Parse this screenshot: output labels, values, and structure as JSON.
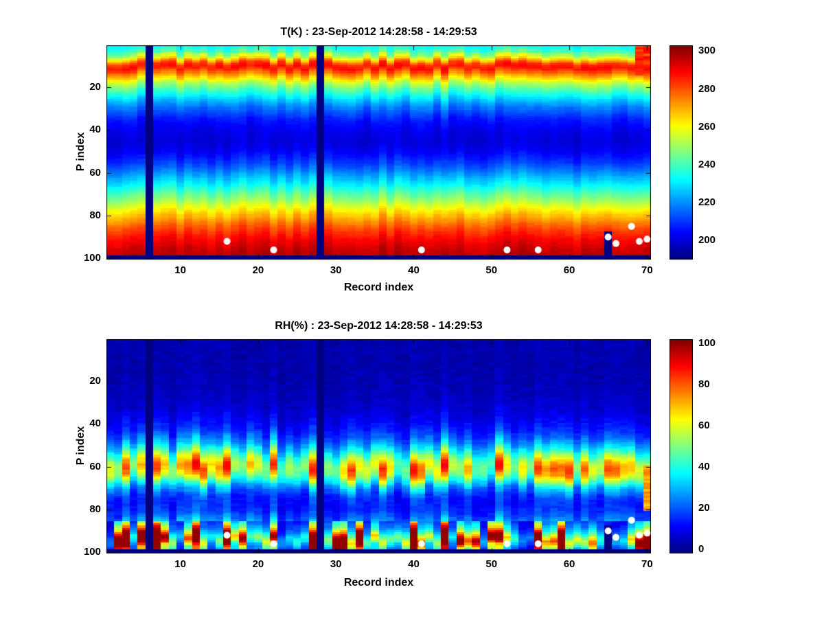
{
  "figure": {
    "background": "#ffffff",
    "marker_color": "#ffffff"
  },
  "chart_data": [
    {
      "type": "heatmap",
      "title": "T(K) : 23-Sep-2012 14:28:58 - 14:29:53",
      "xlabel": "Record index",
      "ylabel": "P index",
      "x_range": [
        1,
        70
      ],
      "y_range": [
        1,
        100
      ],
      "y_axis_reversed": true,
      "colormap": "jet",
      "grid": false,
      "x_ticks": [
        "10",
        "20",
        "30",
        "40",
        "50",
        "60",
        "70"
      ],
      "x_tick_values": [
        10,
        20,
        30,
        40,
        50,
        60,
        70
      ],
      "y_ticks": [
        "20",
        "40",
        "60",
        "80",
        "100"
      ],
      "y_tick_values": [
        20,
        40,
        60,
        80,
        100
      ],
      "color_axis": {
        "min": 190,
        "max": 303
      },
      "colorbar_ticks": [
        "200",
        "220",
        "240",
        "260",
        "280",
        "300"
      ],
      "colorbar_tick_values": [
        200,
        220,
        240,
        260,
        280,
        300
      ],
      "profile_p": [
        1,
        4,
        7,
        9,
        11,
        14,
        18,
        22,
        26,
        30,
        35,
        40,
        45,
        50,
        55,
        60,
        65,
        70,
        75,
        80,
        85,
        90,
        95,
        98
      ],
      "profile_value": [
        233,
        243,
        266,
        284,
        288,
        273,
        253,
        238,
        226,
        216,
        207,
        202,
        200,
        203,
        210,
        220,
        231,
        243,
        256,
        268,
        279,
        288,
        294,
        297
      ],
      "column_noise_amplitude": 2.5,
      "band_wiggle_amplitude": 1.2,
      "missing_records": [
        6,
        28
      ],
      "missing_bottom_from_p": 99,
      "partial_missing": [
        {
          "record": 65,
          "from_p": 88
        }
      ],
      "anomalies": [
        {
          "records": [
            69,
            70
          ],
          "p_from": 1,
          "p_to": 14,
          "value": 284
        }
      ],
      "markers": {
        "shape": "circle",
        "color": "#ffffff",
        "points": [
          [
            16,
            92
          ],
          [
            22,
            96
          ],
          [
            41,
            96
          ],
          [
            52,
            96
          ],
          [
            56,
            96
          ],
          [
            65,
            90
          ],
          [
            66,
            93
          ],
          [
            68,
            85
          ],
          [
            69,
            92
          ],
          [
            70,
            91
          ]
        ]
      }
    },
    {
      "type": "heatmap",
      "title": "RH(%) : 23-Sep-2012 14:28:58 - 14:29:53",
      "xlabel": "Record index",
      "ylabel": "P index",
      "x_range": [
        1,
        70
      ],
      "y_range": [
        1,
        100
      ],
      "y_axis_reversed": true,
      "colormap": "jet",
      "grid": false,
      "x_ticks": [
        "10",
        "20",
        "30",
        "40",
        "50",
        "60",
        "70"
      ],
      "x_tick_values": [
        10,
        20,
        30,
        40,
        50,
        60,
        70
      ],
      "y_ticks": [
        "20",
        "40",
        "60",
        "80",
        "100"
      ],
      "y_tick_values": [
        20,
        40,
        60,
        80,
        100
      ],
      "color_axis": {
        "min": -2,
        "max": 102
      },
      "colorbar_ticks": [
        "0",
        "20",
        "40",
        "60",
        "80",
        "100"
      ],
      "colorbar_tick_values": [
        0,
        20,
        40,
        60,
        80,
        100
      ],
      "profile_p": [
        1,
        15,
        25,
        32,
        38,
        44,
        50,
        54,
        57,
        60,
        63,
        66,
        70,
        74,
        78,
        82,
        86,
        89,
        92,
        94,
        96,
        98
      ],
      "profile_value": [
        3,
        3,
        4,
        6,
        10,
        16,
        30,
        46,
        60,
        68,
        63,
        48,
        27,
        16,
        14,
        18,
        27,
        40,
        62,
        80,
        66,
        40
      ],
      "column_noise_amplitude": 0.35,
      "band_wiggle_amplitude": 1.8,
      "spike_p_from": 86,
      "spike_p_to": 98,
      "missing_records": [
        6,
        28
      ],
      "missing_bottom_from_p": 99,
      "partial_missing": [
        {
          "record": 65,
          "from_p": 88
        }
      ],
      "anomalies": [
        {
          "records": [
            70
          ],
          "p_from": 60,
          "p_to": 80,
          "value": 72
        }
      ],
      "markers": {
        "shape": "circle",
        "color": "#ffffff",
        "points": [
          [
            16,
            92
          ],
          [
            22,
            96
          ],
          [
            41,
            96
          ],
          [
            52,
            96
          ],
          [
            56,
            96
          ],
          [
            65,
            90
          ],
          [
            66,
            93
          ],
          [
            68,
            85
          ],
          [
            69,
            92
          ],
          [
            70,
            91
          ]
        ]
      }
    }
  ]
}
